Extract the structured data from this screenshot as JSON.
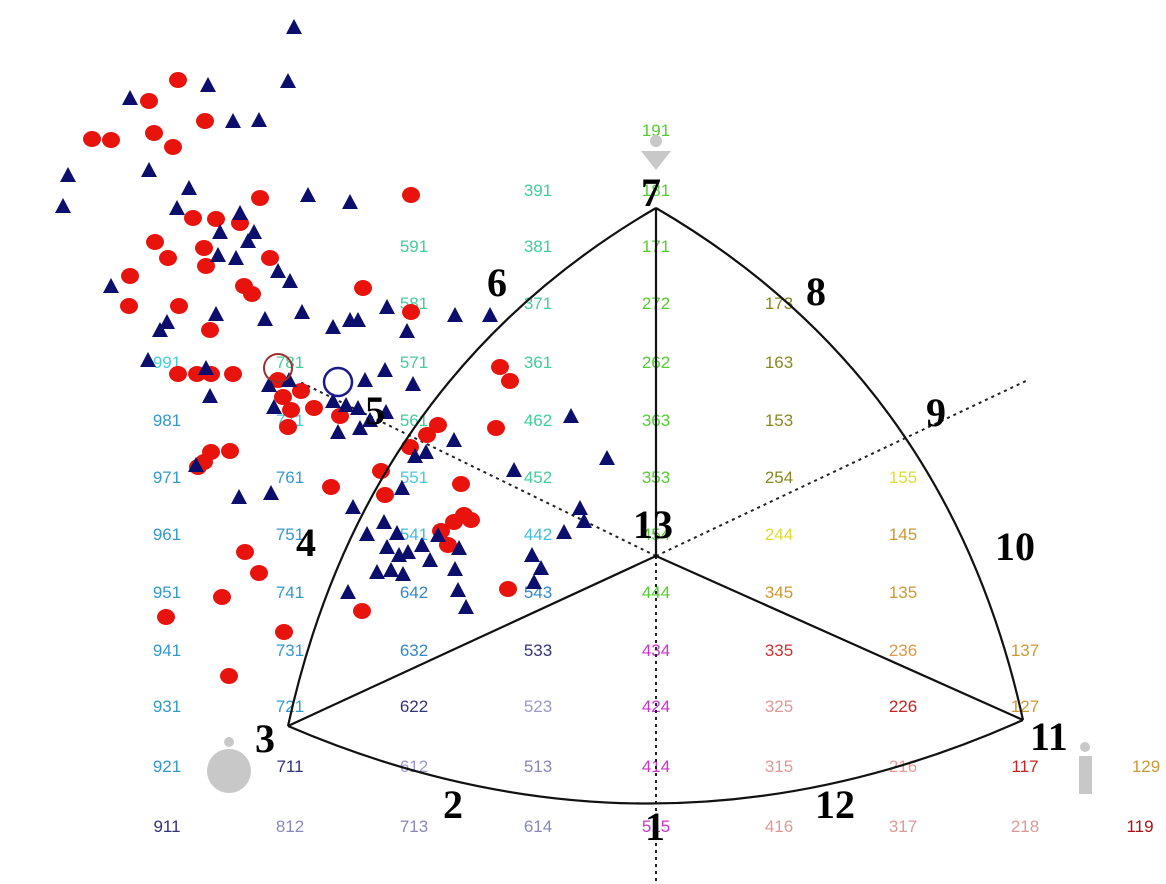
{
  "diagram": {
    "vertex_labels": [
      "1",
      "2",
      "3",
      "4",
      "5",
      "6",
      "7",
      "8",
      "9",
      "10",
      "11",
      "12",
      "13"
    ],
    "colors": {
      "outline": "#111111",
      "marker_circle": "#e8130d",
      "marker_triangle": "#0b0f6b",
      "grey_icon": "#c8c8c8",
      "open_circle_red": "#a03030",
      "open_circle_blue": "#1a1a8a"
    },
    "code_labels": [
      {
        "text": "191",
        "color": "#55cc33"
      },
      {
        "text": "181",
        "color": "#55cc33"
      },
      {
        "text": "171",
        "color": "#55cc33"
      },
      {
        "text": "272",
        "color": "#55cc33"
      },
      {
        "text": "262",
        "color": "#55cc33"
      },
      {
        "text": "363",
        "color": "#55cc33"
      },
      {
        "text": "353",
        "color": "#55cc33"
      },
      {
        "text": "454",
        "color": "#55cc33"
      },
      {
        "text": "444",
        "color": "#55cc33"
      },
      {
        "text": "434",
        "color": "#cc33cc"
      },
      {
        "text": "424",
        "color": "#cc33cc"
      },
      {
        "text": "414",
        "color": "#cc33cc"
      },
      {
        "text": "515",
        "color": "#cc33cc"
      },
      {
        "text": "391",
        "color": "#44cc99"
      },
      {
        "text": "381",
        "color": "#44cc99"
      },
      {
        "text": "371",
        "color": "#44cc99"
      },
      {
        "text": "361",
        "color": "#44cc99"
      },
      {
        "text": "462",
        "color": "#44cc99"
      },
      {
        "text": "452",
        "color": "#44cc99"
      },
      {
        "text": "442",
        "color": "#44bbdd"
      },
      {
        "text": "543",
        "color": "#3388cc"
      },
      {
        "text": "533",
        "color": "#33337a"
      },
      {
        "text": "523",
        "color": "#9999cc"
      },
      {
        "text": "513",
        "color": "#8888bb"
      },
      {
        "text": "614",
        "color": "#8888bb"
      },
      {
        "text": "591",
        "color": "#44cc99"
      },
      {
        "text": "581",
        "color": "#44cc99"
      },
      {
        "text": "571",
        "color": "#44cc99"
      },
      {
        "text": "561",
        "color": "#44cc99"
      },
      {
        "text": "551",
        "color": "#44ccdd"
      },
      {
        "text": "541",
        "color": "#44bbdd"
      },
      {
        "text": "642",
        "color": "#3388cc"
      },
      {
        "text": "632",
        "color": "#3388cc"
      },
      {
        "text": "622",
        "color": "#33337a"
      },
      {
        "text": "612",
        "color": "#9999cc"
      },
      {
        "text": "713",
        "color": "#8888bb"
      },
      {
        "text": "781",
        "color": "#44cc99"
      },
      {
        "text": "771",
        "color": "#44ccdd"
      },
      {
        "text": "761",
        "color": "#3399cc"
      },
      {
        "text": "751",
        "color": "#3399cc"
      },
      {
        "text": "741",
        "color": "#3399cc"
      },
      {
        "text": "731",
        "color": "#3399cc"
      },
      {
        "text": "721",
        "color": "#3399cc"
      },
      {
        "text": "711",
        "color": "#33337a"
      },
      {
        "text": "812",
        "color": "#8888bb"
      },
      {
        "text": "991",
        "color": "#44ccdd"
      },
      {
        "text": "981",
        "color": "#3399cc"
      },
      {
        "text": "971",
        "color": "#3399cc"
      },
      {
        "text": "961",
        "color": "#3399cc"
      },
      {
        "text": "951",
        "color": "#3399cc"
      },
      {
        "text": "941",
        "color": "#3399cc"
      },
      {
        "text": "931",
        "color": "#3399cc"
      },
      {
        "text": "921",
        "color": "#3399cc"
      },
      {
        "text": "911",
        "color": "#33337a"
      },
      {
        "text": "173",
        "color": "#888822"
      },
      {
        "text": "163",
        "color": "#888822"
      },
      {
        "text": "153",
        "color": "#888822"
      },
      {
        "text": "254",
        "color": "#888822"
      },
      {
        "text": "244",
        "color": "#dddd33"
      },
      {
        "text": "345",
        "color": "#cc9933"
      },
      {
        "text": "335",
        "color": "#cc3333"
      },
      {
        "text": "325",
        "color": "#dd9999"
      },
      {
        "text": "315",
        "color": "#dd9999"
      },
      {
        "text": "416",
        "color": "#dd9999"
      },
      {
        "text": "155",
        "color": "#dddd33"
      },
      {
        "text": "145",
        "color": "#cc9933"
      },
      {
        "text": "135",
        "color": "#cc9933"
      },
      {
        "text": "236",
        "color": "#dd9944"
      },
      {
        "text": "226",
        "color": "#cc2222"
      },
      {
        "text": "216",
        "color": "#ee9999"
      },
      {
        "text": "317",
        "color": "#dd9999"
      },
      {
        "text": "137",
        "color": "#cc9933"
      },
      {
        "text": "127",
        "color": "#cc9933"
      },
      {
        "text": "117",
        "color": "#cc2222"
      },
      {
        "text": "218",
        "color": "#dd9999"
      },
      {
        "text": "129",
        "color": "#cc9933"
      },
      {
        "text": "119",
        "color": "#aa1111"
      }
    ]
  }
}
